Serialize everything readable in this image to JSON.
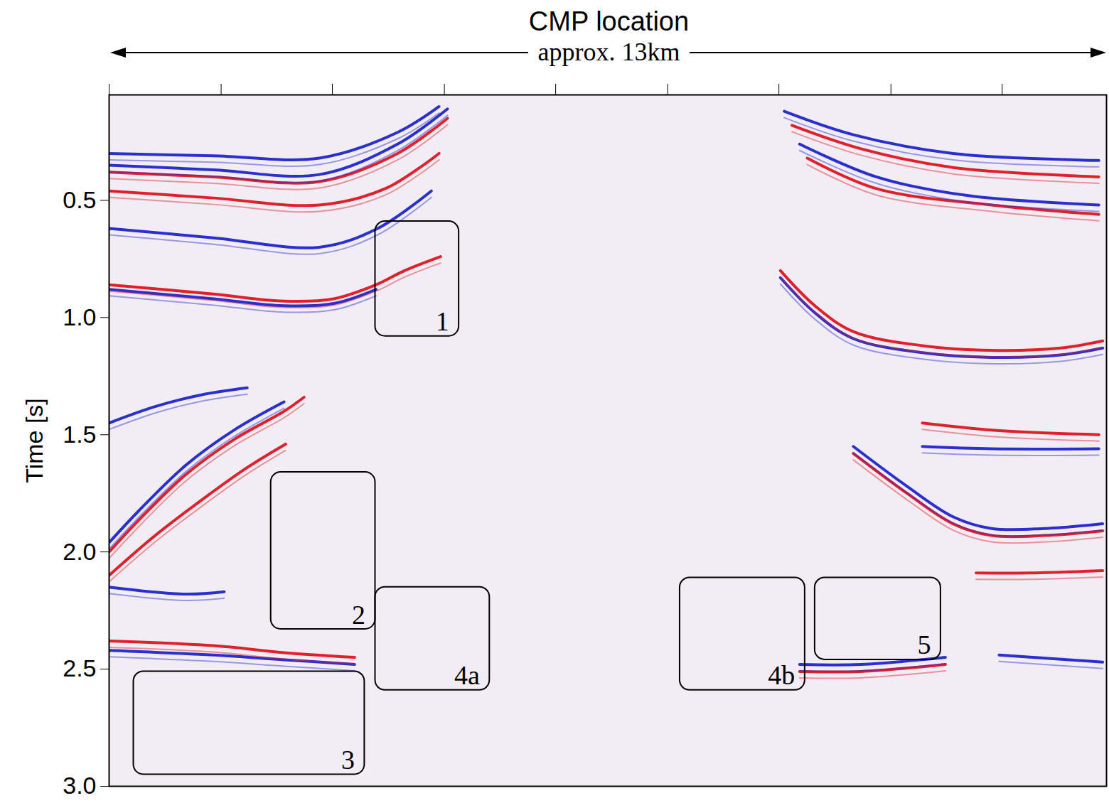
{
  "chart_data": {
    "type": "line",
    "title": "CMP location",
    "subtitle": "approx. 13km",
    "ylabel": "Time [s]",
    "xlim": [
      0,
      13
    ],
    "xticks": [
      0,
      1.46,
      2.91,
      4.37,
      5.82,
      7.28,
      8.73,
      10.19,
      11.64
    ],
    "ylim": [
      3.0,
      0.05
    ],
    "yticks": [
      0.5,
      {
        "value": 1,
        "label": "1.0"
      },
      1.5,
      {
        "value": 2,
        "label": "2.0"
      },
      2.5,
      {
        "value": 3,
        "label": "3.0"
      }
    ],
    "tick_labels": "y",
    "series": [
      {
        "color": "#2a2fd0",
        "x": [
          0,
          1.36,
          2.74,
          3.76,
          4.3
        ],
        "values": [
          0.3,
          0.31,
          0.32,
          0.21,
          0.1
        ]
      },
      {
        "color": "#2a2fd0",
        "x": [
          0,
          1.36,
          2.74,
          3.76,
          4.41
        ],
        "values": [
          0.35,
          0.37,
          0.39,
          0.26,
          0.11
        ]
      },
      {
        "color": "#e0202a",
        "x": [
          0,
          1.36,
          2.74,
          3.76,
          4.41
        ],
        "values": [
          0.38,
          0.4,
          0.42,
          0.3,
          0.15
        ]
      },
      {
        "color": "#e0202a",
        "x": [
          0,
          1.36,
          2.74,
          3.6,
          4.3
        ],
        "values": [
          0.46,
          0.49,
          0.52,
          0.45,
          0.3
        ]
      },
      {
        "color": "#2a2fd0",
        "x": [
          0,
          1.36,
          2.74,
          3.5,
          4.2
        ],
        "values": [
          0.62,
          0.66,
          0.7,
          0.62,
          0.46
        ]
      },
      {
        "color": "#e0202a",
        "x": [
          0,
          1.36,
          2.28,
          2.93,
          3.48,
          3.85,
          4.32
        ],
        "values": [
          0.86,
          0.9,
          0.93,
          0.92,
          0.86,
          0.8,
          0.74
        ]
      },
      {
        "color": "#2a2fd0",
        "x": [
          0,
          1.36,
          2.28,
          2.93,
          3.48
        ],
        "values": [
          0.88,
          0.92,
          0.95,
          0.94,
          0.88
        ]
      },
      {
        "color": "#2a2fd0",
        "x": [
          0,
          0.6,
          1.2,
          1.8
        ],
        "values": [
          1.45,
          1.38,
          1.33,
          1.3
        ]
      },
      {
        "color": "#2a2fd0",
        "x": [
          0,
          0.43,
          1.0,
          1.63,
          2.28
        ],
        "values": [
          1.96,
          1.81,
          1.63,
          1.48,
          1.36
        ]
      },
      {
        "color": "#e0202a",
        "x": [
          0,
          0.43,
          1.0,
          1.63,
          2.28,
          2.54
        ],
        "values": [
          2.0,
          1.85,
          1.67,
          1.52,
          1.4,
          1.34
        ]
      },
      {
        "color": "#e0202a",
        "x": [
          0,
          0.6,
          1.2,
          1.8,
          2.3
        ],
        "values": [
          2.1,
          1.93,
          1.78,
          1.64,
          1.54
        ]
      },
      {
        "color": "#2a2fd0",
        "x": [
          0,
          1.0,
          1.5
        ],
        "values": [
          2.15,
          2.18,
          2.17
        ]
      },
      {
        "color": "#e0202a",
        "x": [
          0,
          1.36,
          2.28,
          3.2
        ],
        "values": [
          2.38,
          2.4,
          2.43,
          2.45
        ]
      },
      {
        "color": "#2a2fd0",
        "x": [
          0,
          1.36,
          2.28,
          3.2
        ],
        "values": [
          2.42,
          2.44,
          2.46,
          2.48
        ]
      },
      {
        "color": "#2a2fd0",
        "x": [
          8.8,
          9.7,
          11.0,
          12.9
        ],
        "values": [
          0.12,
          0.22,
          0.3,
          0.33
        ]
      },
      {
        "color": "#e0202a",
        "x": [
          8.9,
          9.8,
          11.0,
          12.9
        ],
        "values": [
          0.18,
          0.28,
          0.36,
          0.4
        ]
      },
      {
        "color": "#2a2fd0",
        "x": [
          9.0,
          10.0,
          11.2,
          12.9
        ],
        "values": [
          0.26,
          0.4,
          0.48,
          0.52
        ]
      },
      {
        "color": "#e0202a",
        "x": [
          9.1,
          10.0,
          11.5,
          12.9
        ],
        "values": [
          0.32,
          0.45,
          0.52,
          0.56
        ]
      },
      {
        "color": "#e0202a",
        "x": [
          8.75,
          9.2,
          9.7,
          10.6,
          11.5,
          12.4,
          12.95
        ],
        "values": [
          0.8,
          0.95,
          1.06,
          1.12,
          1.14,
          1.13,
          1.1
        ]
      },
      {
        "color": "#2a2fd0",
        "x": [
          8.75,
          9.2,
          9.7,
          10.6,
          11.5,
          12.4,
          12.95
        ],
        "values": [
          0.83,
          0.98,
          1.09,
          1.15,
          1.17,
          1.16,
          1.13
        ]
      },
      {
        "color": "#e0202a",
        "x": [
          10.6,
          11.5,
          12.9
        ],
        "values": [
          1.45,
          1.48,
          1.5
        ]
      },
      {
        "color": "#2a2fd0",
        "x": [
          10.6,
          11.5,
          12.9
        ],
        "values": [
          1.55,
          1.56,
          1.56
        ]
      },
      {
        "color": "#2a2fd0",
        "x": [
          9.7,
          10.4,
          11.0,
          11.5,
          12.2,
          12.95
        ],
        "values": [
          1.55,
          1.72,
          1.85,
          1.9,
          1.9,
          1.88
        ]
      },
      {
        "color": "#e0202a",
        "x": [
          9.7,
          10.4,
          11.0,
          11.5,
          12.2,
          12.95
        ],
        "values": [
          1.58,
          1.75,
          1.88,
          1.93,
          1.93,
          1.91
        ]
      },
      {
        "color": "#e0202a",
        "x": [
          11.3,
          12.0,
          12.95
        ],
        "values": [
          2.09,
          2.09,
          2.08
        ]
      },
      {
        "color": "#2a2fd0",
        "x": [
          9.0,
          9.8,
          10.9
        ],
        "values": [
          2.48,
          2.48,
          2.45
        ]
      },
      {
        "color": "#e0202a",
        "x": [
          9.0,
          9.8,
          10.9
        ],
        "values": [
          2.51,
          2.51,
          2.48
        ]
      },
      {
        "color": "#2a2fd0",
        "x": [
          11.6,
          12.95
        ],
        "values": [
          2.44,
          2.47
        ]
      }
    ],
    "annotations": [
      {
        "label": "1",
        "x": [
          3.47,
          4.56
        ],
        "y": [
          0.59,
          1.08
        ]
      },
      {
        "label": "2",
        "x": [
          2.11,
          3.47
        ],
        "y": [
          1.66,
          2.33
        ]
      },
      {
        "label": "3",
        "x": [
          0.32,
          3.33
        ],
        "y": [
          2.51,
          2.95
        ]
      },
      {
        "label": "4a",
        "x": [
          3.47,
          4.96
        ],
        "y": [
          2.15,
          2.59
        ]
      },
      {
        "label": "4b",
        "x": [
          7.44,
          9.07
        ],
        "y": [
          2.11,
          2.59
        ]
      },
      {
        "label": "5",
        "x": [
          9.2,
          10.84
        ],
        "y": [
          2.11,
          2.46
        ]
      }
    ]
  }
}
